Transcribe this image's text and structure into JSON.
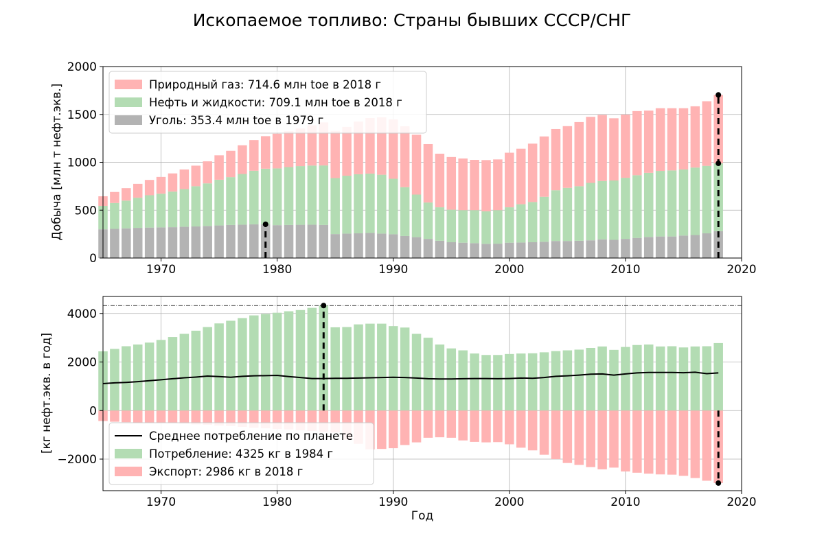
{
  "figure_title": "Ископаемое топливо: Страны бывших СССР/СНГ",
  "colors": {
    "gas": "#ffb3b3",
    "oil": "#b3dcb3",
    "coal": "#b3b3b3",
    "line": "#000000",
    "consumption": "#b3dcb3",
    "export": "#ffb3b3"
  },
  "chart_data": [
    {
      "type": "bar",
      "stacked": true,
      "ylabel": "Добыча [млн т нефт.экв.]",
      "xlabel": "",
      "xlim": [
        1965,
        2020
      ],
      "ylim": [
        0,
        2000
      ],
      "xticks": [
        1970,
        1980,
        1990,
        2000,
        2010,
        2020
      ],
      "yticks": [
        0,
        500,
        1000,
        1500,
        2000
      ],
      "legend_position": "upper-left",
      "x": [
        1965,
        1966,
        1967,
        1968,
        1969,
        1970,
        1971,
        1972,
        1973,
        1974,
        1975,
        1976,
        1977,
        1978,
        1979,
        1980,
        1981,
        1982,
        1983,
        1984,
        1985,
        1986,
        1987,
        1988,
        1989,
        1990,
        1991,
        1992,
        1993,
        1994,
        1995,
        1996,
        1997,
        1998,
        1999,
        2000,
        2001,
        2002,
        2003,
        2004,
        2005,
        2006,
        2007,
        2008,
        2009,
        2010,
        2011,
        2012,
        2013,
        2014,
        2015,
        2016,
        2017,
        2018
      ],
      "series": [
        {
          "name": "Уголь: 353.4 млн toe в 1979 г",
          "key": "coal",
          "values": [
            300,
            305,
            310,
            315,
            318,
            320,
            322,
            327,
            330,
            335,
            340,
            345,
            348,
            352,
            353,
            343,
            345,
            347,
            348,
            345,
            250,
            255,
            258,
            262,
            255,
            248,
            230,
            218,
            200,
            180,
            165,
            160,
            155,
            148,
            150,
            160,
            162,
            165,
            170,
            178,
            178,
            180,
            185,
            195,
            190,
            200,
            210,
            220,
            225,
            225,
            235,
            240,
            258,
            280
          ]
        },
        {
          "name": "Нефть и жидкости: 709.1 млн toe в 2018 г",
          "key": "oil",
          "values": [
            245,
            270,
            290,
            315,
            338,
            352,
            372,
            393,
            420,
            445,
            478,
            500,
            530,
            560,
            580,
            593,
            605,
            613,
            618,
            622,
            585,
            605,
            617,
            620,
            615,
            580,
            510,
            445,
            380,
            350,
            340,
            340,
            345,
            340,
            350,
            370,
            400,
            420,
            470,
            530,
            555,
            570,
            600,
            610,
            620,
            638,
            655,
            670,
            685,
            690,
            690,
            705,
            705,
            709
          ]
        },
        {
          "name": "Природный газ: 714.6 млн toe в 2018 г",
          "key": "gas",
          "values": [
            100,
            115,
            130,
            145,
            160,
            175,
            190,
            205,
            215,
            230,
            255,
            275,
            300,
            320,
            340,
            363,
            375,
            393,
            420,
            450,
            495,
            510,
            550,
            580,
            600,
            620,
            636,
            625,
            610,
            560,
            550,
            540,
            525,
            535,
            530,
            570,
            580,
            610,
            630,
            640,
            645,
            670,
            690,
            690,
            650,
            660,
            670,
            650,
            655,
            650,
            640,
            640,
            675,
            715
          ]
        }
      ],
      "markers": [
        {
          "x": 1979,
          "y0": 0,
          "y1": 353.4
        },
        {
          "x": 2018,
          "y0": 0,
          "y1": 989,
          "y2": 1704
        }
      ]
    },
    {
      "type": "bar",
      "xlabel": "Год",
      "ylabel": "[кг нефт.экв. в год]",
      "xlim": [
        1965,
        2020
      ],
      "ylim": [
        -3300,
        4700
      ],
      "xticks": [
        1970,
        1980,
        1990,
        2000,
        2010,
        2020
      ],
      "yticks": [
        -2000,
        0,
        2000,
        4000
      ],
      "ytick_labels": [
        "−2000",
        "0",
        "2000",
        "4000"
      ],
      "legend_position": "lower-left",
      "reference_line": 4325,
      "x": [
        1965,
        1966,
        1967,
        1968,
        1969,
        1970,
        1971,
        1972,
        1973,
        1974,
        1975,
        1976,
        1977,
        1978,
        1979,
        1980,
        1981,
        1982,
        1983,
        1984,
        1985,
        1986,
        1987,
        1988,
        1989,
        1990,
        1991,
        1992,
        1993,
        1994,
        1995,
        1996,
        1997,
        1998,
        1999,
        2000,
        2001,
        2002,
        2003,
        2004,
        2005,
        2006,
        2007,
        2008,
        2009,
        2010,
        2011,
        2012,
        2013,
        2014,
        2015,
        2016,
        2017,
        2018
      ],
      "series": [
        {
          "name": "Потребление: 4325 кг в 1984 г",
          "key": "consumption",
          "values": [
            2440,
            2540,
            2650,
            2720,
            2800,
            2910,
            3030,
            3160,
            3290,
            3440,
            3590,
            3700,
            3810,
            3920,
            3980,
            4030,
            4090,
            4140,
            4230,
            4325,
            3430,
            3440,
            3550,
            3580,
            3580,
            3480,
            3420,
            3160,
            3000,
            2720,
            2560,
            2480,
            2350,
            2290,
            2290,
            2330,
            2350,
            2360,
            2400,
            2450,
            2480,
            2510,
            2580,
            2640,
            2500,
            2620,
            2700,
            2720,
            2640,
            2650,
            2600,
            2640,
            2650,
            2780
          ]
        },
        {
          "name": "Экспорт: 2986 кг в 2018 г",
          "key": "export",
          "values": [
            -430,
            -460,
            -480,
            -500,
            -500,
            -510,
            -520,
            -540,
            -570,
            -590,
            -620,
            -640,
            -670,
            -710,
            -730,
            -760,
            -780,
            -810,
            -840,
            -880,
            -900,
            -1200,
            -1370,
            -1600,
            -1580,
            -1550,
            -1420,
            -1310,
            -1120,
            -1100,
            -1120,
            -1230,
            -1290,
            -1310,
            -1300,
            -1390,
            -1530,
            -1640,
            -1820,
            -2000,
            -2160,
            -2240,
            -2330,
            -2420,
            -2350,
            -2510,
            -2560,
            -2600,
            -2630,
            -2640,
            -2690,
            -2780,
            -2890,
            -2986
          ]
        },
        {
          "name": "Среднее потребление по планете",
          "key": "line",
          "type": "line",
          "values": [
            1110,
            1140,
            1160,
            1190,
            1230,
            1270,
            1310,
            1350,
            1380,
            1420,
            1400,
            1370,
            1410,
            1430,
            1440,
            1450,
            1400,
            1360,
            1320,
            1320,
            1330,
            1330,
            1340,
            1350,
            1360,
            1370,
            1360,
            1340,
            1310,
            1300,
            1300,
            1310,
            1320,
            1320,
            1310,
            1320,
            1340,
            1330,
            1360,
            1410,
            1430,
            1460,
            1500,
            1510,
            1460,
            1510,
            1550,
            1570,
            1570,
            1570,
            1560,
            1580,
            1520,
            1550
          ]
        }
      ],
      "markers": [
        {
          "x": 1984,
          "y0": 0,
          "y1": 4325
        },
        {
          "x": 2018,
          "y0": 0,
          "y1": -2986
        }
      ]
    }
  ]
}
